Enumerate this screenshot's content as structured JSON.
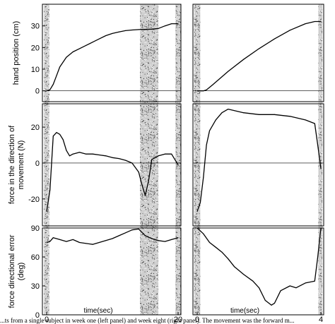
{
  "caption": "...ts from a single subject in week one (left panel) and week eight (right panel). The movement was the forward m...",
  "chart_data": [
    {
      "type": "line",
      "panel": "left",
      "xlabel": "time(sec)",
      "xlim": [
        0,
        20
      ],
      "x_ticks": [
        "0",
        "20"
      ],
      "rows": [
        {
          "ylabel": "hand position (cm)",
          "ylim": [
            -5,
            40
          ],
          "y_ticks": [
            "0",
            "10",
            "20",
            "30"
          ],
          "reference_line": 0,
          "series": [
            {
              "x": [
                0,
                0.5,
                1.0,
                1.5,
                2,
                3,
                4,
                5,
                6,
                7,
                8,
                9,
                10,
                11,
                12,
                13,
                14,
                15,
                16,
                17,
                18,
                19,
                20
              ],
              "y": [
                0,
                0.5,
                3,
                7,
                11,
                15.5,
                18,
                19.5,
                21,
                22.5,
                24,
                25.5,
                26.5,
                27.2,
                27.8,
                28.1,
                28.3,
                28.4,
                28.5,
                28.8,
                30,
                31,
                31
              ]
            }
          ]
        },
        {
          "ylabel": "force in the direction of movement (N)",
          "ylim": [
            -35,
            33
          ],
          "y_ticks": [
            "-20",
            "0",
            "20"
          ],
          "reference_line": 0,
          "series": [
            {
              "x": [
                0,
                0.5,
                1,
                1.5,
                2,
                2.5,
                3,
                3.5,
                4,
                5,
                6,
                7,
                8,
                9,
                10,
                11,
                12,
                13,
                14,
                14.5,
                15,
                15.5,
                16,
                17,
                18,
                19,
                20
              ],
              "y": [
                -27,
                -15,
                15,
                17,
                16,
                13,
                7,
                4,
                5,
                6,
                5,
                5,
                4.5,
                4,
                3,
                2.5,
                1.5,
                0,
                -5,
                -12,
                -18,
                -10,
                2,
                4,
                5,
                5,
                -1
              ]
            }
          ]
        },
        {
          "ylabel": "force directional error (deg)",
          "ylim": [
            0,
            90
          ],
          "y_ticks": [
            "0",
            "30",
            "60",
            "90"
          ],
          "reference_line": 90,
          "series": [
            {
              "x": [
                0,
                0.5,
                1,
                2,
                3,
                4,
                5,
                6,
                7,
                8,
                9,
                10,
                11,
                12,
                13,
                14,
                15,
                16,
                17,
                18,
                19,
                20
              ],
              "y": [
                75,
                76,
                80,
                78,
                76,
                78,
                75,
                74,
                73,
                75,
                77,
                79,
                82,
                85,
                88,
                89,
                82,
                79,
                77,
                76,
                78,
                80
              ]
            }
          ]
        }
      ],
      "noise_bands_x": [
        [
          -0.4,
          0.4
        ],
        [
          14.2,
          17.0
        ],
        [
          19.6,
          20.4
        ]
      ]
    },
    {
      "type": "line",
      "panel": "right",
      "xlabel": "time(sec)",
      "xlim": [
        0,
        4
      ],
      "x_ticks": [
        "0",
        "4"
      ],
      "rows": [
        {
          "ylim": [
            -5,
            40
          ],
          "reference_line": 0,
          "series": [
            {
              "x": [
                0,
                0.2,
                0.3,
                0.5,
                1.0,
                1.5,
                2.0,
                2.5,
                3.0,
                3.5,
                3.8,
                4.0
              ],
              "y": [
                0,
                0,
                0.4,
                2.8,
                9,
                14.5,
                19.5,
                24,
                28,
                31,
                32,
                32
              ]
            }
          ]
        },
        {
          "ylim": [
            -35,
            33
          ],
          "reference_line": 0,
          "series": [
            {
              "x": [
                0,
                0.1,
                0.2,
                0.3,
                0.4,
                0.6,
                0.8,
                1.0,
                1.5,
                2.0,
                2.5,
                3.0,
                3.5,
                3.8,
                3.9,
                4.0
              ],
              "y": [
                -27,
                -22,
                -8,
                10,
                18,
                24,
                28,
                30,
                28,
                27,
                27,
                26,
                24,
                22,
                10,
                -3
              ]
            }
          ]
        },
        {
          "ylim": [
            0,
            90
          ],
          "reference_line": 90,
          "series": [
            {
              "x": [
                0,
                0.2,
                0.4,
                0.6,
                0.8,
                1.0,
                1.2,
                1.5,
                1.8,
                2.0,
                2.2,
                2.4,
                2.5,
                2.7,
                3.0,
                3.2,
                3.5,
                3.8,
                3.9,
                4.0
              ],
              "y": [
                90,
                84,
                75,
                70,
                65,
                58,
                50,
                42,
                35,
                28,
                15,
                10,
                12,
                25,
                30,
                28,
                33,
                35,
                60,
                90
              ]
            }
          ]
        }
      ],
      "noise_bands_x": [
        [
          -0.1,
          0.1
        ],
        [
          3.92,
          4.05
        ]
      ]
    }
  ]
}
